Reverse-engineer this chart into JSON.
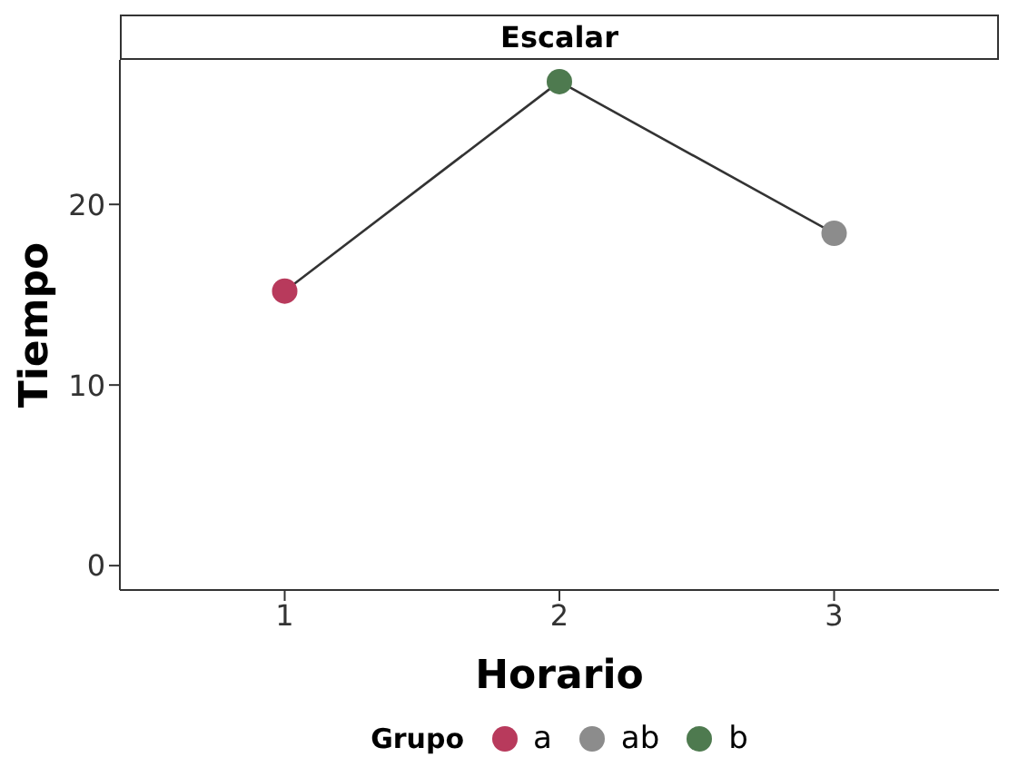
{
  "chart_data": {
    "type": "scatter",
    "title": "Escalar",
    "xlabel": "Horario",
    "ylabel": "Tiempo",
    "legend_title": "Grupo",
    "legend": "bottom",
    "grid": false,
    "xlim": [
      0.4,
      3.6
    ],
    "xticks": [
      1,
      2,
      3
    ],
    "ylim": [
      -1.35,
      28
    ],
    "yticks": [
      0,
      10,
      20
    ],
    "series": [
      {
        "type": "line",
        "color": "#333333",
        "marker": "none",
        "x": [
          1,
          2,
          3
        ],
        "values": [
          15.2,
          26.8,
          18.4
        ]
      },
      {
        "name": "a",
        "color": "#b83a5c",
        "marker": "circle",
        "x": [
          1
        ],
        "values": [
          15.2
        ]
      },
      {
        "name": "ab",
        "color": "#8c8c8c",
        "marker": "circle",
        "x": [
          3
        ],
        "values": [
          18.4
        ]
      },
      {
        "name": "b",
        "color": "#4e7a4f",
        "marker": "circle",
        "x": [
          2
        ],
        "values": [
          26.8
        ]
      }
    ]
  }
}
